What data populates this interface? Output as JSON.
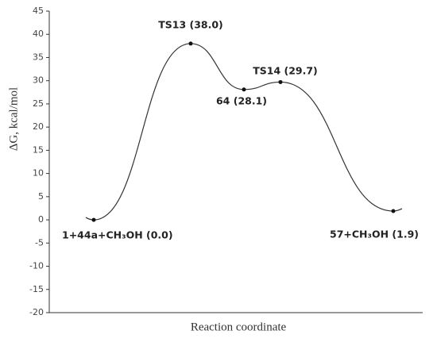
{
  "chart_data": {
    "type": "energy-profile",
    "ylabel": "ΔG, kcal/mol",
    "xlabel": "Reaction coordinate",
    "categories": [
      "1+44a+CH₃OH",
      "TS13",
      "64",
      "TS14",
      "57+CH₃OH"
    ],
    "values": [
      0.0,
      38.0,
      28.1,
      29.7,
      1.9
    ],
    "value_labels": [
      "1+44a+CH₃OH (0.0)",
      "TS13 (38.0)",
      "64 (28.1)",
      "TS14 (29.7)",
      "57+CH₃OH (1.9)"
    ],
    "color": "#333333",
    "ylim": [
      -20,
      45
    ],
    "yticks": [
      -20,
      -15,
      -10,
      -5,
      0,
      5,
      10,
      15,
      20,
      25,
      30,
      35,
      40,
      45
    ]
  }
}
